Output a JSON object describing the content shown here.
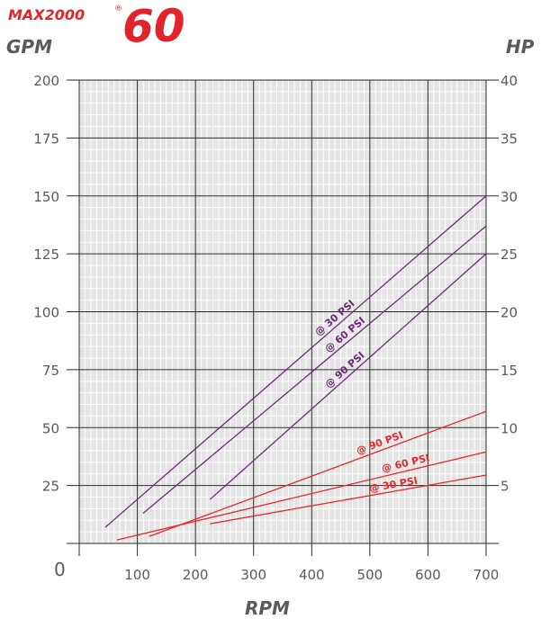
{
  "header": {
    "brand": "MAX2000",
    "registered": "®",
    "model": "60"
  },
  "colors": {
    "brand_red": "#e2232a",
    "gpm_series": "#6b2c75",
    "hp_series": "#e8262a",
    "plot_bg": "#e4e4e4",
    "text": "#5a5a5a"
  },
  "chart_data": {
    "type": "line",
    "xlabel": "RPM",
    "ylabel_left": "GPM",
    "ylabel_right": "HP",
    "xlim": [
      0,
      700
    ],
    "ylim_left": [
      0,
      200
    ],
    "ylim_right": [
      0,
      40
    ],
    "origin_label": "0",
    "x_ticks": [
      "100",
      "200",
      "300",
      "400",
      "500",
      "600",
      "700"
    ],
    "y_left_ticks": [
      "25",
      "50",
      "75",
      "100",
      "125",
      "150",
      "175",
      "200"
    ],
    "y_right_ticks": [
      "5",
      "10",
      "15",
      "20",
      "25",
      "30",
      "35",
      "40"
    ],
    "grid": true,
    "series": [
      {
        "label": "@ 30 PSI",
        "axis": "left",
        "color": "gpm",
        "x": [
          45,
          700
        ],
        "y": [
          7,
          150
        ]
      },
      {
        "label": "@ 60 PSI",
        "axis": "left",
        "color": "gpm",
        "x": [
          110,
          700
        ],
        "y": [
          13,
          137
        ]
      },
      {
        "label": "@ 90 PSI",
        "axis": "left",
        "color": "gpm",
        "x": [
          225,
          700
        ],
        "y": [
          19,
          125
        ]
      },
      {
        "label": "@ 90 PSI",
        "axis": "right",
        "color": "hp",
        "x": [
          120,
          700
        ],
        "y": [
          0.6,
          11.4
        ]
      },
      {
        "label": "@ 60 PSI",
        "axis": "right",
        "color": "hp",
        "x": [
          65,
          700
        ],
        "y": [
          0.3,
          7.9
        ]
      },
      {
        "label": "@ 30 PSI",
        "axis": "right",
        "color": "hp",
        "x": [
          225,
          700
        ],
        "y": [
          1.7,
          5.9
        ]
      }
    ]
  }
}
